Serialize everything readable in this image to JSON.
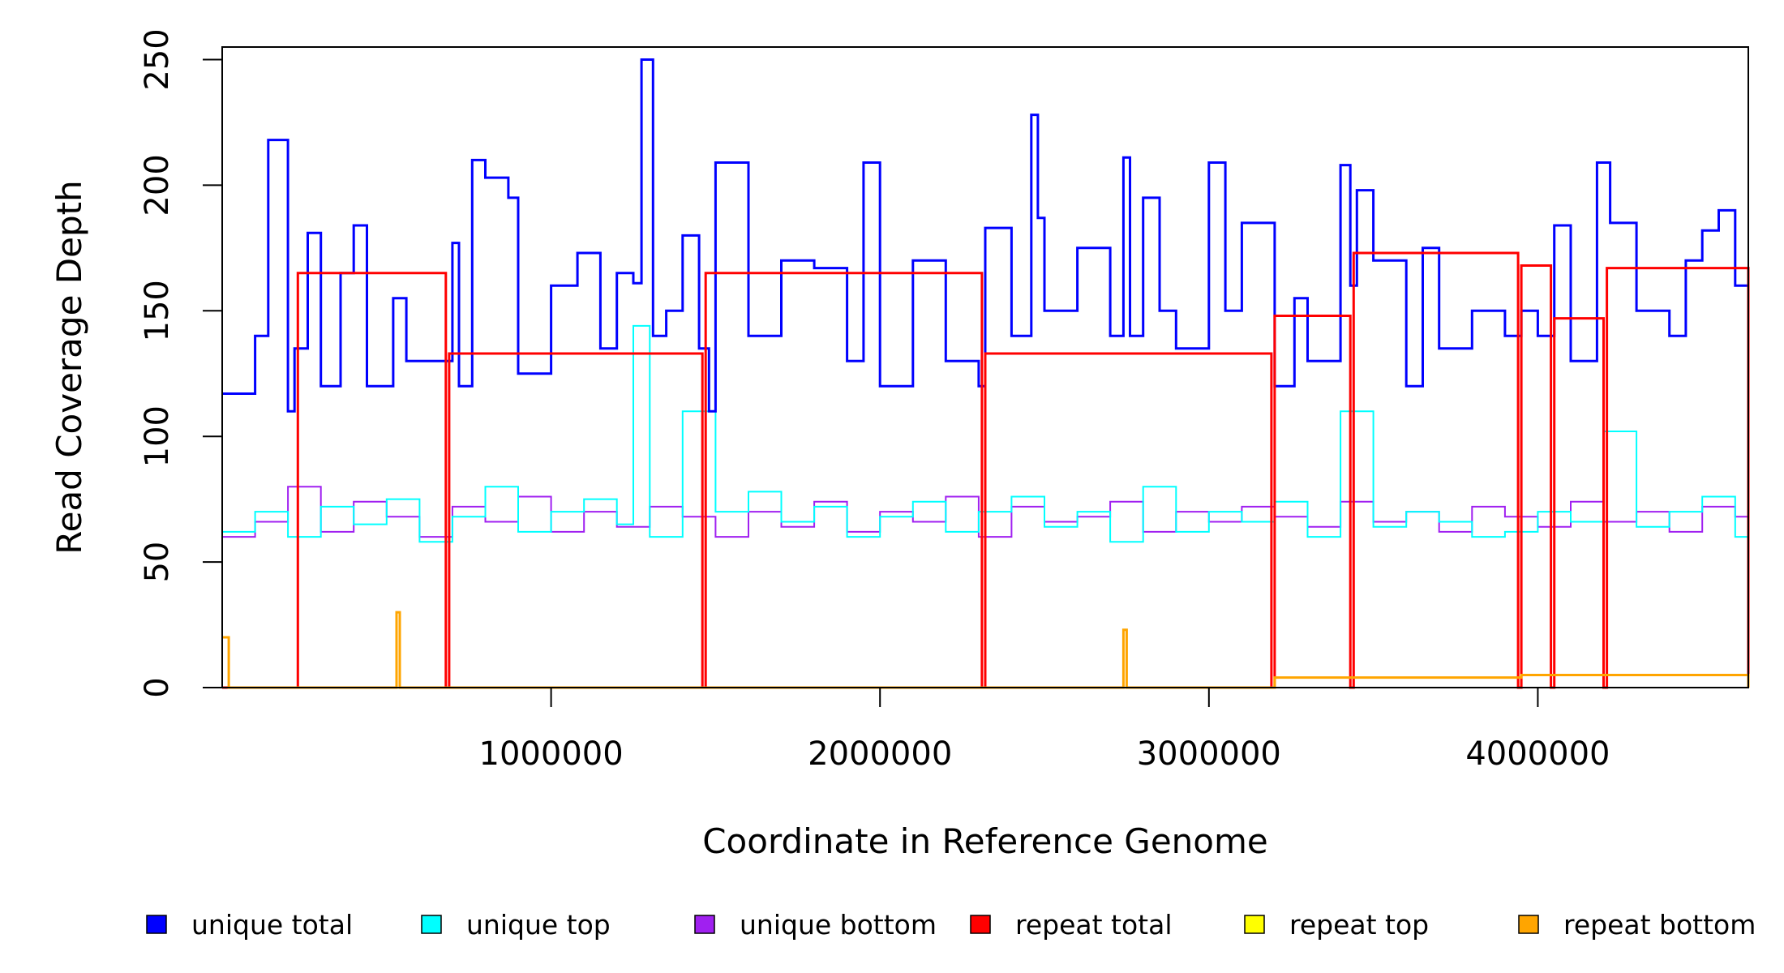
{
  "chart_data": {
    "type": "line",
    "title": "",
    "xlabel": "Coordinate in Reference Genome",
    "ylabel": "Read Coverage Depth",
    "xlim": [
      0,
      4640000
    ],
    "ylim": [
      0,
      255
    ],
    "x_ticks": [
      1000000,
      2000000,
      3000000,
      4000000
    ],
    "x_tick_labels": [
      "1000000",
      "2000000",
      "3000000",
      "4000000"
    ],
    "y_ticks": [
      0,
      50,
      100,
      150,
      200,
      250
    ],
    "y_tick_labels": [
      "0",
      "50",
      "100",
      "150",
      "200",
      "250"
    ],
    "grid": false,
    "legend_position": "bottom",
    "series": [
      {
        "name": "unique total",
        "color": "#0000ff",
        "x": [
          0,
          100000,
          140000,
          200000,
          220000,
          260000,
          300000,
          360000,
          400000,
          440000,
          520000,
          560000,
          700000,
          720000,
          760000,
          800000,
          870000,
          900000,
          1000000,
          1080000,
          1150000,
          1200000,
          1250000,
          1275000,
          1310000,
          1350000,
          1400000,
          1450000,
          1480000,
          1500000,
          1600000,
          1700000,
          1800000,
          1900000,
          1950000,
          2000000,
          2100000,
          2200000,
          2300000,
          2320000,
          2400000,
          2460000,
          2480000,
          2500000,
          2600000,
          2700000,
          2740000,
          2760000,
          2800000,
          2850000,
          2900000,
          3000000,
          3050000,
          3100000,
          3200000,
          3260000,
          3300000,
          3400000,
          3430000,
          3450000,
          3500000,
          3600000,
          3650000,
          3700000,
          3800000,
          3900000,
          3950000,
          4000000,
          4050000,
          4100000,
          4180000,
          4220000,
          4300000,
          4400000,
          4450000,
          4500000,
          4550000,
          4600000,
          4640000
        ],
        "y": [
          117,
          140,
          218,
          110,
          135,
          181,
          120,
          165,
          184,
          120,
          155,
          130,
          177,
          120,
          210,
          203,
          195,
          125,
          160,
          173,
          135,
          165,
          161,
          250,
          140,
          150,
          180,
          135,
          110,
          209,
          140,
          170,
          167,
          130,
          209,
          120,
          170,
          130,
          120,
          183,
          140,
          228,
          187,
          150,
          175,
          140,
          211,
          140,
          195,
          150,
          135,
          209,
          150,
          185,
          120,
          155,
          130,
          208,
          160,
          198,
          170,
          120,
          175,
          135,
          150,
          140,
          150,
          140,
          184,
          130,
          209,
          185,
          150,
          140,
          170,
          182,
          190,
          160,
          150
        ]
      },
      {
        "name": "unique top",
        "color": "#00ffff",
        "x": [
          0,
          100000,
          200000,
          300000,
          400000,
          500000,
          600000,
          700000,
          800000,
          900000,
          1000000,
          1100000,
          1200000,
          1250000,
          1300000,
          1400000,
          1500000,
          1600000,
          1700000,
          1800000,
          1900000,
          2000000,
          2100000,
          2200000,
          2300000,
          2400000,
          2500000,
          2600000,
          2700000,
          2800000,
          2900000,
          3000000,
          3100000,
          3200000,
          3300000,
          3400000,
          3500000,
          3600000,
          3700000,
          3800000,
          3900000,
          4000000,
          4100000,
          4200000,
          4300000,
          4400000,
          4500000,
          4600000,
          4640000
        ],
        "y": [
          62,
          70,
          60,
          72,
          65,
          75,
          58,
          68,
          80,
          62,
          70,
          75,
          65,
          144,
          60,
          110,
          70,
          78,
          66,
          72,
          60,
          68,
          74,
          62,
          70,
          76,
          64,
          70,
          58,
          80,
          62,
          70,
          66,
          74,
          60,
          110,
          64,
          70,
          66,
          60,
          62,
          70,
          66,
          102,
          64,
          70,
          76,
          60,
          68
        ]
      },
      {
        "name": "unique bottom",
        "color": "#a020f0",
        "x": [
          0,
          100000,
          200000,
          300000,
          400000,
          500000,
          600000,
          700000,
          800000,
          900000,
          1000000,
          1100000,
          1200000,
          1300000,
          1400000,
          1500000,
          1600000,
          1700000,
          1800000,
          1900000,
          2000000,
          2100000,
          2200000,
          2300000,
          2400000,
          2500000,
          2600000,
          2700000,
          2800000,
          2900000,
          3000000,
          3100000,
          3200000,
          3300000,
          3400000,
          3500000,
          3600000,
          3700000,
          3800000,
          3900000,
          4000000,
          4100000,
          4200000,
          4300000,
          4400000,
          4500000,
          4600000,
          4640000
        ],
        "y": [
          60,
          66,
          80,
          62,
          74,
          68,
          60,
          72,
          66,
          76,
          62,
          70,
          64,
          72,
          68,
          60,
          70,
          64,
          74,
          62,
          70,
          66,
          76,
          60,
          72,
          66,
          68,
          74,
          62,
          70,
          66,
          72,
          68,
          64,
          74,
          66,
          70,
          62,
          72,
          68,
          64,
          74,
          66,
          70,
          62,
          72,
          68,
          66
        ]
      },
      {
        "name": "repeat total",
        "color": "#ff0000",
        "x": [
          0,
          220000,
          230000,
          680000,
          690000,
          1460000,
          1470000,
          2310000,
          2320000,
          3190000,
          3200000,
          3430000,
          3440000,
          3940000,
          3950000,
          4040000,
          4050000,
          4200000,
          4210000,
          4640000
        ],
        "y": [
          0,
          0,
          165,
          0,
          133,
          0,
          165,
          0,
          133,
          0,
          148,
          0,
          173,
          0,
          168,
          0,
          147,
          0,
          167,
          0
        ]
      },
      {
        "name": "repeat top",
        "color": "#ffff00",
        "x": [
          0,
          4640000
        ],
        "y": [
          0,
          0
        ]
      },
      {
        "name": "repeat bottom",
        "color": "#ffa500",
        "x": [
          0,
          10000,
          20000,
          520000,
          530000,
          540000,
          2730000,
          2740000,
          2750000,
          3200000,
          3950000,
          4640000
        ],
        "y": [
          20,
          20,
          0,
          0,
          30,
          0,
          0,
          23,
          0,
          4,
          5,
          0
        ]
      }
    ]
  }
}
